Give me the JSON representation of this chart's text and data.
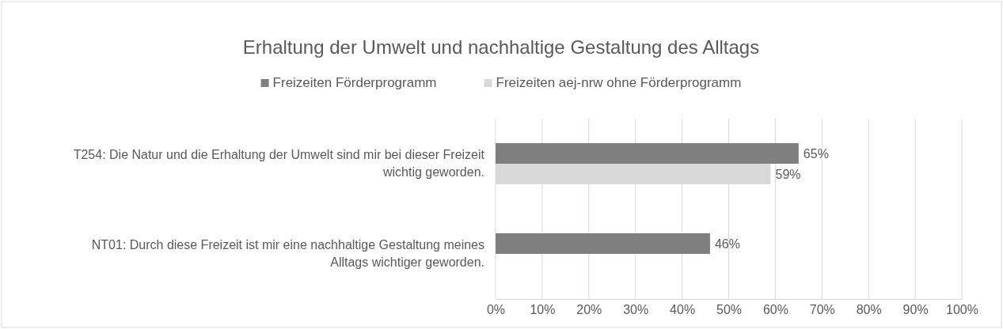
{
  "chart_data": {
    "type": "bar",
    "orientation": "horizontal",
    "title": "Erhaltung der Umwelt und nachhaltige Gestaltung des Alltags",
    "categories": [
      "T254: Die Natur  und die Erhaltung der Umwelt sind mir bei dieser Freizeit wichtig geworden.",
      "NT01: Durch diese Freizeit ist mir eine nachhaltige Gestaltung meines Alltags wichtiger geworden."
    ],
    "series": [
      {
        "name": "Freizeiten Förderprogramm",
        "color": "#7f7f7f",
        "values": [
          65,
          46
        ],
        "value_labels": [
          "65%",
          "46%"
        ]
      },
      {
        "name": "Freizeiten aej-nrw ohne Förderprogramm",
        "color": "#d9d9d9",
        "values": [
          59,
          null
        ],
        "value_labels": [
          "59%",
          null
        ]
      }
    ],
    "xlim": [
      0,
      100
    ],
    "xticks": [
      {
        "value": 0,
        "label": "0%"
      },
      {
        "value": 10,
        "label": "10%"
      },
      {
        "value": 20,
        "label": "20%"
      },
      {
        "value": 30,
        "label": "30%"
      },
      {
        "value": 40,
        "label": "40%"
      },
      {
        "value": 50,
        "label": "50%"
      },
      {
        "value": 60,
        "label": "60%"
      },
      {
        "value": 70,
        "label": "70%"
      },
      {
        "value": 80,
        "label": "80%"
      },
      {
        "value": 90,
        "label": "90%"
      },
      {
        "value": 100,
        "label": "100%"
      }
    ],
    "grid": "x",
    "legend": "top"
  }
}
